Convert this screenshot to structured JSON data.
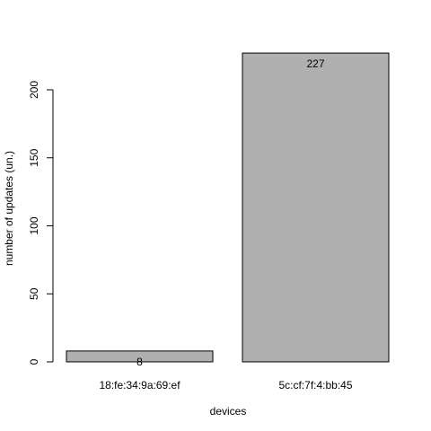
{
  "chart_data": {
    "type": "bar",
    "title": "",
    "xlabel": "devices",
    "ylabel": "number of updates (un.)",
    "categories": [
      "18:fe:34:9a:69:ef",
      "5c:cf:7f:4:bb:45"
    ],
    "values": [
      8,
      227
    ],
    "data_labels": [
      "8",
      "227"
    ],
    "yticks": [
      0,
      50,
      100,
      150,
      200
    ],
    "ylim": [
      0,
      235
    ],
    "grid": false,
    "legend": "none",
    "colors": {
      "bar_fill": "#b0b0b0",
      "bar_stroke": "#000000"
    }
  }
}
